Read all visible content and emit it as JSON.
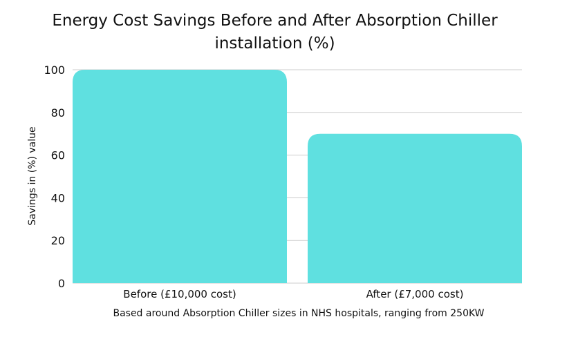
{
  "chart_data": {
    "type": "bar",
    "title": "Energy Cost Savings Before and After Absorption Chiller installation (%)",
    "categories": [
      "Before (£10,000 cost)",
      "After (£7,000 cost)"
    ],
    "values": [
      100,
      70
    ],
    "xlabel": "Based around Absorption Chiller sizes in NHS hospitals, ranging from 250KW",
    "ylabel": "Savings in (%) value",
    "ylim": [
      0,
      100
    ],
    "yticks": [
      0,
      20,
      40,
      60,
      80,
      100
    ],
    "grid": true,
    "legend": "none",
    "bar_color": "#5fe0e0",
    "grid_color": "#cccccc"
  }
}
